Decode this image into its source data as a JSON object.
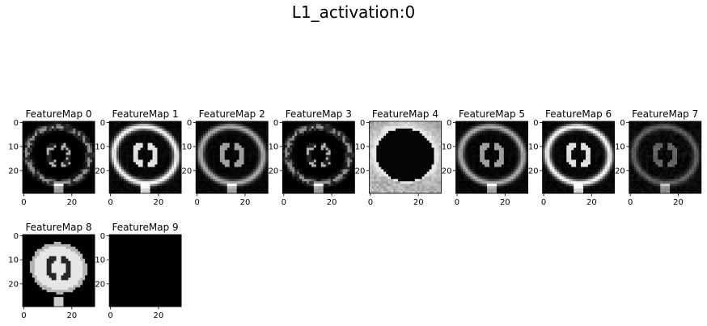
{
  "figure": {
    "title": "L1_activation:0"
  },
  "chart_data": {
    "type": "heatmap",
    "colormap": "gray",
    "image_size": [
      30,
      30
    ],
    "x_ticks": [
      0,
      20
    ],
    "y_ticks": [
      0,
      10,
      20
    ],
    "panels": [
      {
        "title": "FeatureMap 0",
        "style": "edges-thin"
      },
      {
        "title": "FeatureMap 1",
        "style": "rings-bright"
      },
      {
        "title": "FeatureMap 2",
        "style": "rings-mid"
      },
      {
        "title": "FeatureMap 3",
        "style": "edges-thin"
      },
      {
        "title": "FeatureMap 4",
        "style": "inverted"
      },
      {
        "title": "FeatureMap 5",
        "style": "rings-mid"
      },
      {
        "title": "FeatureMap 6",
        "style": "rings-bright"
      },
      {
        "title": "FeatureMap 7",
        "style": "rings-dim"
      },
      {
        "title": "FeatureMap 8",
        "style": "filled"
      },
      {
        "title": "FeatureMap 9",
        "style": "blank"
      }
    ]
  }
}
